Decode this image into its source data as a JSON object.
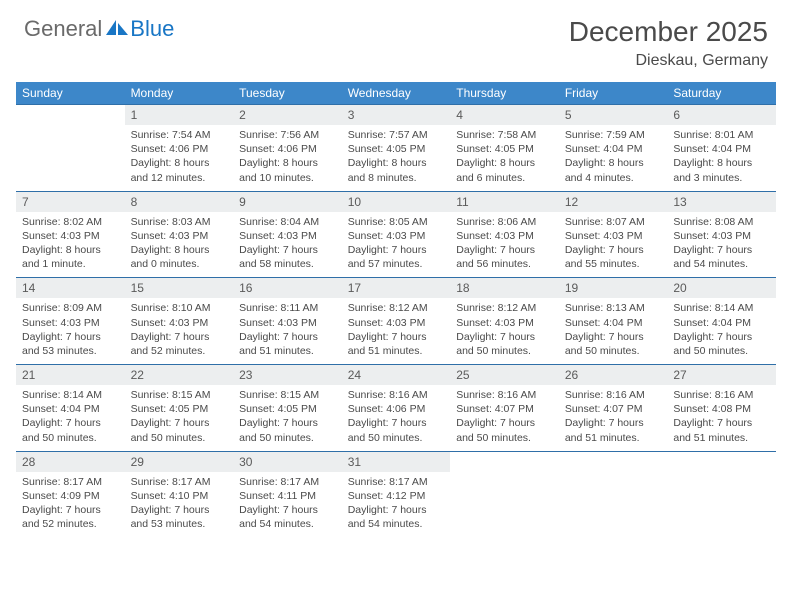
{
  "logo": {
    "part1": "General",
    "part2": "Blue"
  },
  "title": "December 2025",
  "location": "Dieskau, Germany",
  "colors": {
    "header_bg": "#3d87c9",
    "header_text": "#ffffff",
    "daynum_bg": "#eceeef",
    "row_border": "#2f6fa8",
    "body_text": "#4a4a4a",
    "logo_gray": "#6a6a6a",
    "logo_blue": "#1976c5"
  },
  "typography": {
    "title_fontsize": 28,
    "location_fontsize": 16,
    "dayhead_fontsize": 12,
    "daynum_fontsize": 12,
    "cell_fontsize": 10.5
  },
  "day_headers": [
    "Sunday",
    "Monday",
    "Tuesday",
    "Wednesday",
    "Thursday",
    "Friday",
    "Saturday"
  ],
  "weeks": [
    {
      "nums": [
        "",
        "1",
        "2",
        "3",
        "4",
        "5",
        "6"
      ],
      "cells": [
        {
          "sr": "",
          "ss": "",
          "dl1": "",
          "dl2": ""
        },
        {
          "sr": "Sunrise: 7:54 AM",
          "ss": "Sunset: 4:06 PM",
          "dl1": "Daylight: 8 hours",
          "dl2": "and 12 minutes."
        },
        {
          "sr": "Sunrise: 7:56 AM",
          "ss": "Sunset: 4:06 PM",
          "dl1": "Daylight: 8 hours",
          "dl2": "and 10 minutes."
        },
        {
          "sr": "Sunrise: 7:57 AM",
          "ss": "Sunset: 4:05 PM",
          "dl1": "Daylight: 8 hours",
          "dl2": "and 8 minutes."
        },
        {
          "sr": "Sunrise: 7:58 AM",
          "ss": "Sunset: 4:05 PM",
          "dl1": "Daylight: 8 hours",
          "dl2": "and 6 minutes."
        },
        {
          "sr": "Sunrise: 7:59 AM",
          "ss": "Sunset: 4:04 PM",
          "dl1": "Daylight: 8 hours",
          "dl2": "and 4 minutes."
        },
        {
          "sr": "Sunrise: 8:01 AM",
          "ss": "Sunset: 4:04 PM",
          "dl1": "Daylight: 8 hours",
          "dl2": "and 3 minutes."
        }
      ]
    },
    {
      "nums": [
        "7",
        "8",
        "9",
        "10",
        "11",
        "12",
        "13"
      ],
      "cells": [
        {
          "sr": "Sunrise: 8:02 AM",
          "ss": "Sunset: 4:03 PM",
          "dl1": "Daylight: 8 hours",
          "dl2": "and 1 minute."
        },
        {
          "sr": "Sunrise: 8:03 AM",
          "ss": "Sunset: 4:03 PM",
          "dl1": "Daylight: 8 hours",
          "dl2": "and 0 minutes."
        },
        {
          "sr": "Sunrise: 8:04 AM",
          "ss": "Sunset: 4:03 PM",
          "dl1": "Daylight: 7 hours",
          "dl2": "and 58 minutes."
        },
        {
          "sr": "Sunrise: 8:05 AM",
          "ss": "Sunset: 4:03 PM",
          "dl1": "Daylight: 7 hours",
          "dl2": "and 57 minutes."
        },
        {
          "sr": "Sunrise: 8:06 AM",
          "ss": "Sunset: 4:03 PM",
          "dl1": "Daylight: 7 hours",
          "dl2": "and 56 minutes."
        },
        {
          "sr": "Sunrise: 8:07 AM",
          "ss": "Sunset: 4:03 PM",
          "dl1": "Daylight: 7 hours",
          "dl2": "and 55 minutes."
        },
        {
          "sr": "Sunrise: 8:08 AM",
          "ss": "Sunset: 4:03 PM",
          "dl1": "Daylight: 7 hours",
          "dl2": "and 54 minutes."
        }
      ]
    },
    {
      "nums": [
        "14",
        "15",
        "16",
        "17",
        "18",
        "19",
        "20"
      ],
      "cells": [
        {
          "sr": "Sunrise: 8:09 AM",
          "ss": "Sunset: 4:03 PM",
          "dl1": "Daylight: 7 hours",
          "dl2": "and 53 minutes."
        },
        {
          "sr": "Sunrise: 8:10 AM",
          "ss": "Sunset: 4:03 PM",
          "dl1": "Daylight: 7 hours",
          "dl2": "and 52 minutes."
        },
        {
          "sr": "Sunrise: 8:11 AM",
          "ss": "Sunset: 4:03 PM",
          "dl1": "Daylight: 7 hours",
          "dl2": "and 51 minutes."
        },
        {
          "sr": "Sunrise: 8:12 AM",
          "ss": "Sunset: 4:03 PM",
          "dl1": "Daylight: 7 hours",
          "dl2": "and 51 minutes."
        },
        {
          "sr": "Sunrise: 8:12 AM",
          "ss": "Sunset: 4:03 PM",
          "dl1": "Daylight: 7 hours",
          "dl2": "and 50 minutes."
        },
        {
          "sr": "Sunrise: 8:13 AM",
          "ss": "Sunset: 4:04 PM",
          "dl1": "Daylight: 7 hours",
          "dl2": "and 50 minutes."
        },
        {
          "sr": "Sunrise: 8:14 AM",
          "ss": "Sunset: 4:04 PM",
          "dl1": "Daylight: 7 hours",
          "dl2": "and 50 minutes."
        }
      ]
    },
    {
      "nums": [
        "21",
        "22",
        "23",
        "24",
        "25",
        "26",
        "27"
      ],
      "cells": [
        {
          "sr": "Sunrise: 8:14 AM",
          "ss": "Sunset: 4:04 PM",
          "dl1": "Daylight: 7 hours",
          "dl2": "and 50 minutes."
        },
        {
          "sr": "Sunrise: 8:15 AM",
          "ss": "Sunset: 4:05 PM",
          "dl1": "Daylight: 7 hours",
          "dl2": "and 50 minutes."
        },
        {
          "sr": "Sunrise: 8:15 AM",
          "ss": "Sunset: 4:05 PM",
          "dl1": "Daylight: 7 hours",
          "dl2": "and 50 minutes."
        },
        {
          "sr": "Sunrise: 8:16 AM",
          "ss": "Sunset: 4:06 PM",
          "dl1": "Daylight: 7 hours",
          "dl2": "and 50 minutes."
        },
        {
          "sr": "Sunrise: 8:16 AM",
          "ss": "Sunset: 4:07 PM",
          "dl1": "Daylight: 7 hours",
          "dl2": "and 50 minutes."
        },
        {
          "sr": "Sunrise: 8:16 AM",
          "ss": "Sunset: 4:07 PM",
          "dl1": "Daylight: 7 hours",
          "dl2": "and 51 minutes."
        },
        {
          "sr": "Sunrise: 8:16 AM",
          "ss": "Sunset: 4:08 PM",
          "dl1": "Daylight: 7 hours",
          "dl2": "and 51 minutes."
        }
      ]
    },
    {
      "nums": [
        "28",
        "29",
        "30",
        "31",
        "",
        "",
        ""
      ],
      "cells": [
        {
          "sr": "Sunrise: 8:17 AM",
          "ss": "Sunset: 4:09 PM",
          "dl1": "Daylight: 7 hours",
          "dl2": "and 52 minutes."
        },
        {
          "sr": "Sunrise: 8:17 AM",
          "ss": "Sunset: 4:10 PM",
          "dl1": "Daylight: 7 hours",
          "dl2": "and 53 minutes."
        },
        {
          "sr": "Sunrise: 8:17 AM",
          "ss": "Sunset: 4:11 PM",
          "dl1": "Daylight: 7 hours",
          "dl2": "and 54 minutes."
        },
        {
          "sr": "Sunrise: 8:17 AM",
          "ss": "Sunset: 4:12 PM",
          "dl1": "Daylight: 7 hours",
          "dl2": "and 54 minutes."
        },
        {
          "sr": "",
          "ss": "",
          "dl1": "",
          "dl2": ""
        },
        {
          "sr": "",
          "ss": "",
          "dl1": "",
          "dl2": ""
        },
        {
          "sr": "",
          "ss": "",
          "dl1": "",
          "dl2": ""
        }
      ]
    }
  ]
}
